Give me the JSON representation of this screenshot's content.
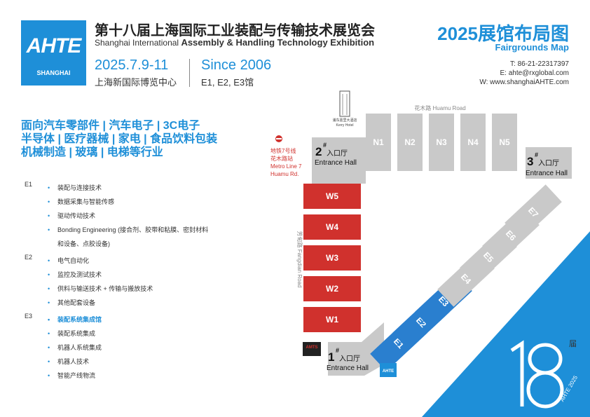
{
  "header": {
    "logo_main": "AHTE",
    "logo_sub": "SHANGHAI",
    "title_cn": "第十八届上海国际工业装配与传输技术展览会",
    "title_en_prefix": "Shanghai International ",
    "title_en_bold": "Assembly & Handling Technology Exhibition",
    "date": "2025.7.9-11",
    "venue": "上海新国际博览中心",
    "since": "Since 2006",
    "halls": "E1, E2, E3馆"
  },
  "map_header": {
    "title": "2025展馆布局图",
    "subtitle": "Fairgrounds Map",
    "phone": "T: 86-21-22317397",
    "email": "E: ahte@rxglobal.com",
    "web": "W: www.shanghaiAHTE.com"
  },
  "industries": [
    "面向汽车零部件 | 汽车电子 | 3C电子",
    "半导体 | 医疗器械 | 家电 | 食品饮料包装",
    "机械制造 | 玻璃 | 电梯等行业"
  ],
  "categories": [
    {
      "code": "E1",
      "items": [
        {
          "text": "装配与连接技术"
        },
        {
          "text": "数据采集与智能传感"
        },
        {
          "text": "驱动传动技术"
        },
        {
          "text": "Bonding Engineering (接合剂、胶带和粘膜、密封材料"
        },
        {
          "text": "和设备、点胶设备)",
          "cont": true
        }
      ]
    },
    {
      "code": "E2",
      "items": [
        {
          "text": "电气自动化"
        },
        {
          "text": "监控及测试技术"
        },
        {
          "text": "供料与输送技术 + 传输与搬放技术"
        },
        {
          "text": "其他配套设备"
        }
      ]
    },
    {
      "code": "E3",
      "items": [
        {
          "text": "装配系统集成馆",
          "hl": true
        },
        {
          "text": "装配系统集成"
        },
        {
          "text": "机器人系统集成"
        },
        {
          "text": "机器人技术"
        },
        {
          "text": "智能产线物流"
        }
      ]
    }
  ],
  "map": {
    "road_north": "花木路  Huamu Road",
    "road_west": "芳甸路  Fangdian Road",
    "metro_line1": "地铁7号线",
    "metro_line2": "花木路站",
    "metro_line3": "Metro Line 7",
    "metro_line4": "Huamu Rd.",
    "hotel_line1": "浦东嘉里大酒店",
    "hotel_line2": "Kerry Hotel",
    "north_halls": [
      "N1",
      "N2",
      "N3",
      "N4",
      "N5"
    ],
    "west_halls": [
      "W5",
      "W4",
      "W3",
      "W2",
      "W1"
    ],
    "east_halls_active": [
      "E1",
      "E2",
      "E3"
    ],
    "east_halls_other": [
      "E4",
      "E5",
      "E6",
      "E7"
    ],
    "entrance1": {
      "num": "1",
      "cn": "入口厅",
      "en": "Entrance Hall"
    },
    "entrance2": {
      "num": "2",
      "cn": "入口厅",
      "en": "Entrance Hall"
    },
    "entrance3": {
      "num": "3",
      "cn": "入口厅",
      "en": "Entrance Hall"
    },
    "amts_label": "AMTS",
    "ahte_small": "AHTE"
  },
  "edition": {
    "number": "18",
    "suffix": "届",
    "label": "AHTE 2025"
  },
  "colors": {
    "brand_blue": "#1e8fd8",
    "hall_red": "#d0312d",
    "hall_gray": "#c9c9c9",
    "hall_blue": "#2a7fcf"
  }
}
